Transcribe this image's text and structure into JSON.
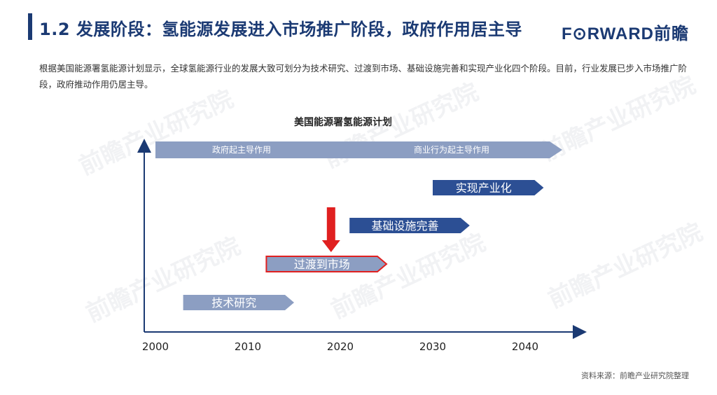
{
  "header": {
    "title": "1.2 发展阶段：氢能源发展进入市场推广阶段，政府作用居主导",
    "logo_text": "F⊙RWARD前瞻"
  },
  "intro_text": "根据美国能源署氢能源计划显示，全球氢能源行业的发展大致可划分为技术研究、过渡到市场、基础设施完善和实现产业化四个阶段。目前，行业发展已步入市场推广阶段，政府推动作用仍居主导。",
  "diagram": {
    "title": "美国能源署氢能源计划",
    "top_arrow": {
      "left_label": "政府起主导作用",
      "right_label": "商业行为起主导作用"
    },
    "stages": [
      {
        "label": "技术研究",
        "start": 2003,
        "end": 2015,
        "highlighted": false,
        "color": "#8c9ec2"
      },
      {
        "label": "过渡到市场",
        "start": 2012,
        "end": 2025,
        "highlighted": true,
        "color": "#8c9ec2"
      },
      {
        "label": "基础设施完善",
        "start": 2021,
        "end": 2034,
        "highlighted": false,
        "color": "#2c4f94"
      },
      {
        "label": "实现产业化",
        "start": 2030,
        "end": 2042,
        "highlighted": false,
        "color": "#2c4f94"
      }
    ],
    "x_ticks": [
      "2000",
      "2010",
      "2020",
      "2030",
      "2040"
    ],
    "current_marker_year": 2019
  },
  "source_text": "资料来源：前瞻产业研究院整理",
  "watermark": "前瞻产业研究院",
  "colors": {
    "brand": "#1b3a73",
    "highlight_border": "#e02020",
    "marker_arrow": "#e02020"
  }
}
